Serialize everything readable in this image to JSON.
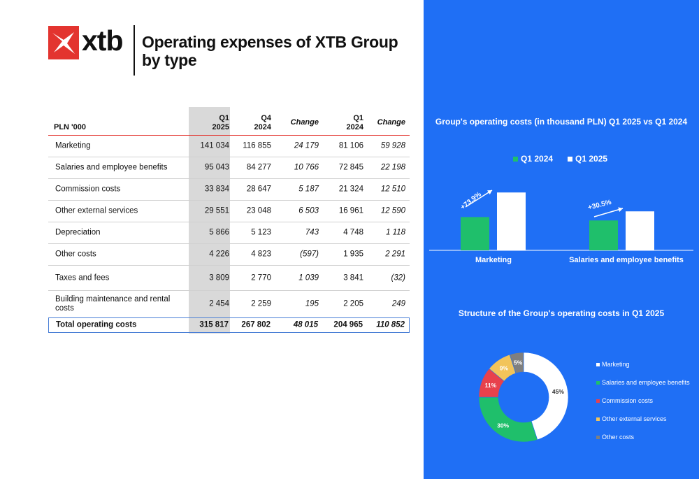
{
  "brand": {
    "name": "xtb",
    "accent": "#e3342f"
  },
  "title": "Operating expenses of XTB Group by type",
  "table": {
    "headers": {
      "label": "PLN '000",
      "q1_2025": [
        "Q1",
        "2025"
      ],
      "q4_2024": [
        "Q4",
        "2024"
      ],
      "change1": "Change",
      "q1_2024": [
        "Q1",
        "2024"
      ],
      "change2": "Change"
    },
    "rows": [
      {
        "label": "Marketing",
        "q1_2025": "141 034",
        "q4_2024": "116 855",
        "change1": "24 179",
        "q1_2024": "81 106",
        "change2": "59 928"
      },
      {
        "label": "Salaries and employee benefits",
        "q1_2025": "95 043",
        "q4_2024": "84 277",
        "change1": "10 766",
        "q1_2024": "72 845",
        "change2": "22 198"
      },
      {
        "label": "Commission costs",
        "q1_2025": "33 834",
        "q4_2024": "28 647",
        "change1": "5 187",
        "q1_2024": "21 324",
        "change2": "12 510"
      },
      {
        "label": "Other external services",
        "q1_2025": "29 551",
        "q4_2024": "23 048",
        "change1": "6 503",
        "q1_2024": "16 961",
        "change2": "12 590"
      },
      {
        "label": "Depreciation",
        "q1_2025": "5 866",
        "q4_2024": "5 123",
        "change1": "743",
        "q1_2024": "4 748",
        "change2": "1 118"
      },
      {
        "label": "Other costs",
        "q1_2025": "4 226",
        "q4_2024": "4 823",
        "change1": "(597)",
        "q1_2024": "1 935",
        "change2": "2 291"
      },
      {
        "label": "Taxes and fees",
        "q1_2025": "3 809",
        "q4_2024": "2 770",
        "change1": "1 039",
        "q1_2024": "3 841",
        "change2": "(32)"
      },
      {
        "label": "Building maintenance and rental costs",
        "q1_2025": "2 454",
        "q4_2024": "2 259",
        "change1": "195",
        "q1_2024": "2 205",
        "change2": "249"
      }
    ],
    "total": {
      "label": "Total operating costs",
      "q1_2025": "315 817",
      "q4_2024": "267 802",
      "change1": "48 015",
      "q1_2024": "204 965",
      "change2": "110 852"
    }
  },
  "panel": {
    "background": "#1f6ff5"
  },
  "chart_data": [
    {
      "type": "bar",
      "title": "Group's operating costs (in thousand PLN) Q1 2025 vs Q1 2024",
      "categories": [
        "Marketing",
        "Salaries and employee benefits"
      ],
      "series": [
        {
          "name": "Q1 2024",
          "color": "#1fbf6b",
          "values": [
            81106,
            72845
          ]
        },
        {
          "name": "Q1 2025",
          "color": "#ffffff",
          "values": [
            141034,
            95043
          ]
        }
      ],
      "annotations": [
        "+73.9%",
        "+30.5%"
      ],
      "ylim": [
        0,
        150000
      ]
    },
    {
      "type": "pie",
      "title": "Structure of the Group's operating costs in Q1 2025",
      "labels": [
        "Marketing",
        "Salaries and employee benefits",
        "Commission costs",
        "Other external services",
        "Other costs"
      ],
      "values": [
        45,
        30,
        11,
        9,
        5
      ],
      "value_labels": [
        "45%",
        "30%",
        "11%",
        "9%",
        "5%"
      ],
      "colors": [
        "#ffffff",
        "#1fbf6b",
        "#e8414c",
        "#f2c45a",
        "#7f7f7f"
      ],
      "label_colors": [
        "#333333",
        "#ffffff",
        "#ffffff",
        "#ffffff",
        "#ffffff"
      ]
    }
  ]
}
